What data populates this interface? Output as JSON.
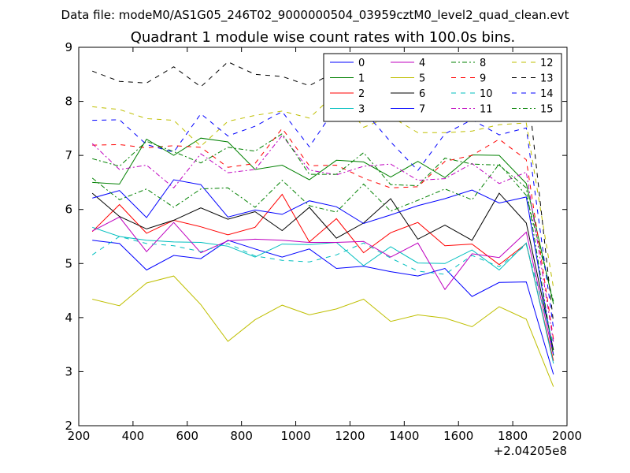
{
  "header_text": "Data file: modeM0/AS1G05_246T02_9000000504_03959cztM0_level2_quad_clean.evt",
  "chart_data": {
    "type": "line",
    "title": "Quadrant 1 module wise count rates with 100.0s bins.",
    "xlabel": "",
    "ylabel": "",
    "x_offset_label": "+2.04205e8",
    "xlim": [
      200,
      2000
    ],
    "ylim": [
      2,
      9
    ],
    "xticks": [
      200,
      400,
      600,
      800,
      1000,
      1200,
      1400,
      1600,
      1800,
      2000
    ],
    "yticks": [
      2,
      3,
      4,
      5,
      6,
      7,
      8,
      9
    ],
    "grid": false,
    "legend_position": "top-right",
    "legend_columns": 4,
    "x": [
      250,
      350,
      450,
      550,
      650,
      750,
      850,
      950,
      1050,
      1150,
      1250,
      1350,
      1450,
      1550,
      1650,
      1750,
      1850,
      1950
    ],
    "series": [
      {
        "name": "0",
        "color": "#0000ff",
        "dash": "solid",
        "values": [
          5.43,
          5.37,
          4.88,
          5.15,
          5.09,
          5.43,
          5.27,
          5.12,
          5.27,
          4.91,
          4.95,
          4.85,
          4.77,
          4.91,
          4.39,
          4.65,
          4.66,
          2.95
        ]
      },
      {
        "name": "1",
        "color": "#008000",
        "dash": "solid",
        "values": [
          6.5,
          6.47,
          7.3,
          7.0,
          7.32,
          7.25,
          6.74,
          6.82,
          6.55,
          6.91,
          6.88,
          6.6,
          6.89,
          6.59,
          7.01,
          7.0,
          6.48,
          4.25
        ]
      },
      {
        "name": "2",
        "color": "#ff0000",
        "dash": "solid",
        "values": [
          5.59,
          6.09,
          5.56,
          5.8,
          5.68,
          5.53,
          5.67,
          6.28,
          5.4,
          5.83,
          5.2,
          5.57,
          5.76,
          5.33,
          5.36,
          4.98,
          5.37,
          3.2
        ]
      },
      {
        "name": "3",
        "color": "#00bfbf",
        "dash": "solid",
        "values": [
          5.67,
          5.5,
          5.43,
          5.4,
          5.39,
          5.32,
          5.12,
          5.36,
          5.35,
          5.39,
          4.96,
          5.31,
          5.01,
          5.0,
          5.25,
          4.88,
          5.38,
          3.15
        ]
      },
      {
        "name": "4",
        "color": "#bf00bf",
        "dash": "solid",
        "values": [
          5.6,
          5.86,
          5.22,
          5.76,
          5.2,
          5.42,
          5.45,
          5.43,
          5.39,
          5.39,
          5.41,
          5.12,
          5.38,
          4.52,
          5.18,
          5.11,
          5.58,
          3.3
        ]
      },
      {
        "name": "5",
        "color": "#bfbf00",
        "dash": "solid",
        "values": [
          4.34,
          4.22,
          4.64,
          4.77,
          4.24,
          3.56,
          3.96,
          4.23,
          4.05,
          4.16,
          4.34,
          3.93,
          4.05,
          3.99,
          3.83,
          4.2,
          3.97,
          2.72
        ]
      },
      {
        "name": "6",
        "color": "#000000",
        "dash": "solid",
        "values": [
          6.3,
          5.87,
          5.64,
          5.8,
          6.03,
          5.82,
          5.96,
          5.61,
          6.04,
          5.47,
          5.75,
          6.2,
          5.45,
          5.71,
          5.43,
          6.3,
          5.75,
          3.4
        ]
      },
      {
        "name": "7",
        "color": "#0000ff",
        "dash": "solid",
        "values": [
          6.21,
          6.35,
          5.85,
          6.55,
          6.46,
          5.86,
          5.99,
          5.91,
          6.16,
          6.05,
          5.74,
          5.9,
          6.07,
          6.2,
          6.36,
          6.12,
          6.23,
          3.31
        ]
      },
      {
        "name": "8",
        "color": "#008000",
        "dash": "dashdot",
        "values": [
          6.58,
          6.18,
          6.38,
          6.04,
          6.38,
          6.4,
          6.04,
          6.54,
          6.07,
          5.95,
          6.47,
          5.97,
          6.17,
          6.38,
          6.18,
          6.84,
          6.26,
          4.3
        ]
      },
      {
        "name": "9",
        "color": "#ff0000",
        "dash": "dashed",
        "values": [
          7.19,
          7.2,
          7.14,
          7.18,
          7.15,
          6.78,
          6.85,
          7.5,
          6.81,
          6.82,
          6.58,
          6.4,
          6.42,
          6.89,
          7.0,
          7.3,
          6.92,
          3.6
        ]
      },
      {
        "name": "10",
        "color": "#00bfbf",
        "dash": "dashed",
        "values": [
          5.16,
          5.5,
          5.37,
          5.33,
          5.22,
          5.37,
          5.14,
          5.06,
          5.03,
          5.16,
          5.38,
          5.1,
          4.86,
          4.8,
          5.15,
          4.94,
          5.35,
          3.5
        ]
      },
      {
        "name": "11",
        "color": "#bf00bf",
        "dash": "dashdot",
        "values": [
          7.22,
          6.74,
          6.82,
          6.4,
          7.03,
          6.68,
          6.74,
          7.37,
          6.73,
          6.64,
          6.8,
          6.84,
          6.54,
          6.57,
          6.85,
          6.48,
          6.69,
          3.55
        ]
      },
      {
        "name": "12",
        "color": "#bfbf00",
        "dash": "dashed",
        "values": [
          7.9,
          7.85,
          7.68,
          7.65,
          7.17,
          7.63,
          7.74,
          7.82,
          7.69,
          8.16,
          7.52,
          7.72,
          7.42,
          7.42,
          7.45,
          7.57,
          7.6,
          4.55
        ]
      },
      {
        "name": "13",
        "color": "#000000",
        "dash": "dashed",
        "values": [
          8.56,
          8.37,
          8.34,
          8.64,
          8.27,
          8.73,
          8.5,
          8.46,
          8.29,
          8.56,
          7.93,
          7.76,
          8.28,
          8.38,
          8.5,
          8.57,
          8.5,
          3.9
        ]
      },
      {
        "name": "14",
        "color": "#0000ff",
        "dash": "dashed",
        "values": [
          7.65,
          7.66,
          7.2,
          7.06,
          7.77,
          7.36,
          7.54,
          7.81,
          7.16,
          7.9,
          7.83,
          7.25,
          6.72,
          7.4,
          7.66,
          7.38,
          7.51,
          3.8
        ]
      },
      {
        "name": "15",
        "color": "#008000",
        "dash": "dashdot",
        "values": [
          6.94,
          6.8,
          7.26,
          7.07,
          6.86,
          7.15,
          7.08,
          7.4,
          6.65,
          6.65,
          7.05,
          6.46,
          6.44,
          6.95,
          6.84,
          6.82,
          6.4,
          3.3
        ]
      }
    ]
  }
}
